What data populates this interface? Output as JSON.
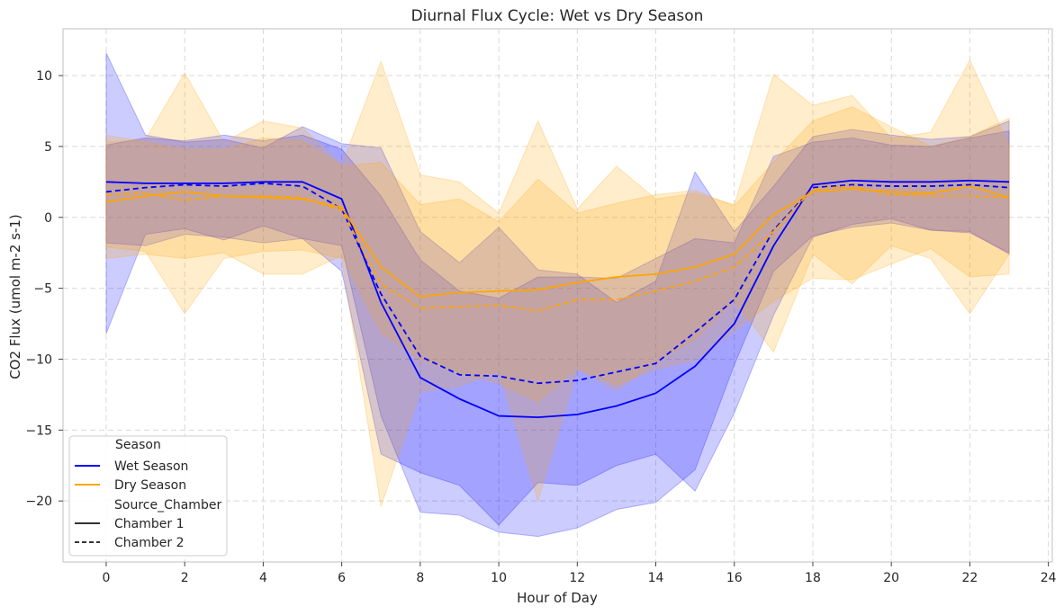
{
  "chart_data": {
    "type": "line",
    "title": "Diurnal Flux Cycle: Wet vs Dry Season",
    "xlabel": "Hour of Day",
    "ylabel": "CO2 Flux (umol m-2 s-1)",
    "xlim": [
      -1.1,
      24.1
    ],
    "ylim": [
      -24.3,
      13.3
    ],
    "x_ticks": [
      0,
      2,
      4,
      6,
      8,
      10,
      12,
      14,
      16,
      18,
      20,
      22,
      24
    ],
    "y_ticks": [
      -20,
      -15,
      -10,
      -5,
      0,
      5,
      10
    ],
    "grid": true,
    "legend_position": "lower-left",
    "legend": {
      "hue_title": "Season",
      "style_title": "Source_Chamber",
      "entries": [
        {
          "label": "Wet Season",
          "color": "#0000ff",
          "dash": "solid"
        },
        {
          "label": "Dry Season",
          "color": "#ffa500",
          "dash": "solid"
        },
        {
          "label": "Chamber 1",
          "color": "#333333",
          "dash": "solid"
        },
        {
          "label": "Chamber 2",
          "color": "#333333",
          "dash": "dashed"
        }
      ]
    },
    "x": [
      0,
      1,
      2,
      3,
      4,
      5,
      6,
      7,
      8,
      9,
      10,
      11,
      12,
      13,
      14,
      15,
      16,
      17,
      18,
      19,
      20,
      21,
      22,
      23
    ],
    "series": [
      {
        "name": "Wet Season",
        "chamber": "Chamber 1",
        "color": "#0000ff",
        "dash": "solid",
        "values": [
          2.5,
          2.4,
          2.4,
          2.4,
          2.5,
          2.5,
          1.3,
          -6.0,
          -11.3,
          -12.8,
          -14.0,
          -14.1,
          -13.9,
          -13.3,
          -12.4,
          -10.5,
          -7.5,
          -2.0,
          2.3,
          2.6,
          2.5,
          2.5,
          2.6,
          2.5
        ],
        "lower": [
          -8.2,
          -1.2,
          -0.8,
          -1.6,
          -0.6,
          -1.5,
          -3.8,
          -16.7,
          -18.0,
          -18.9,
          -21.7,
          -18.7,
          -18.9,
          -17.5,
          -16.7,
          -19.3,
          -13.8,
          -6.9,
          -1.4,
          -0.5,
          -0.1,
          -0.9,
          -1.0,
          -2.6
        ],
        "upper": [
          11.6,
          5.8,
          5.3,
          5.5,
          4.9,
          6.4,
          5.2,
          4.9,
          -1.0,
          -3.2,
          -0.7,
          -3.7,
          -4.0,
          -6.0,
          -4.5,
          3.2,
          -1.0,
          2.2,
          5.7,
          6.2,
          5.8,
          5.5,
          5.7,
          6.8
        ]
      },
      {
        "name": "Wet Season",
        "chamber": "Chamber 2",
        "color": "#0000ff",
        "dash": "dashed",
        "values": [
          1.8,
          2.1,
          2.3,
          2.2,
          2.4,
          2.2,
          0.6,
          -5.4,
          -9.8,
          -11.1,
          -11.2,
          -11.7,
          -11.5,
          -10.9,
          -10.3,
          -8.1,
          -5.8,
          -0.9,
          2.1,
          2.3,
          2.2,
          2.2,
          2.3,
          2.1
        ],
        "lower": [
          -1.8,
          -2.0,
          -1.2,
          -1.4,
          -1.8,
          -1.5,
          -2.0,
          -14.0,
          -20.8,
          -21.0,
          -22.2,
          -22.5,
          -21.9,
          -20.6,
          -20.1,
          -17.8,
          -10.4,
          -3.8,
          -1.3,
          -0.7,
          -0.4,
          -0.9,
          -1.1,
          -2.5
        ],
        "upper": [
          5.1,
          5.6,
          5.4,
          5.8,
          5.4,
          5.8,
          4.8,
          1.5,
          -3.0,
          -5.2,
          -5.7,
          -4.2,
          -4.2,
          -4.3,
          -2.9,
          -1.5,
          -1.8,
          4.3,
          5.3,
          5.6,
          5.1,
          5.0,
          5.6,
          6.1
        ]
      },
      {
        "name": "Dry Season",
        "chamber": "Chamber 1",
        "color": "#ffa500",
        "dash": "solid",
        "values": [
          1.1,
          1.5,
          1.8,
          1.5,
          1.4,
          1.3,
          0.7,
          -3.5,
          -5.6,
          -5.3,
          -5.2,
          -5.1,
          -4.6,
          -4.2,
          -4.0,
          -3.5,
          -2.6,
          0.2,
          1.8,
          2.0,
          1.8,
          1.7,
          2.2,
          1.4
        ],
        "lower": [
          -2.1,
          -2.4,
          -6.8,
          -2.9,
          -2.4,
          -2.3,
          -2.9,
          -20.4,
          -12.3,
          -11.9,
          -10.8,
          -20.0,
          -10.7,
          -12.2,
          -10.2,
          -8.6,
          -5.9,
          -9.5,
          -2.6,
          -4.7,
          -2.0,
          -2.9,
          -6.8,
          -2.6
        ],
        "upper": [
          5.3,
          5.5,
          10.2,
          5.3,
          6.8,
          6.3,
          3.7,
          11.0,
          3.0,
          2.5,
          0.3,
          6.8,
          0.6,
          3.6,
          1.3,
          1.7,
          0.9,
          10.1,
          7.9,
          8.6,
          5.6,
          6.0,
          11.1,
          5.1
        ]
      },
      {
        "name": "Dry Season",
        "chamber": "Chamber 2",
        "color": "#ffa500",
        "dash": "dashed",
        "values": [
          1.6,
          1.7,
          1.2,
          1.5,
          1.5,
          1.4,
          0.5,
          -4.7,
          -6.4,
          -6.3,
          -6.2,
          -6.6,
          -5.8,
          -5.8,
          -5.2,
          -4.5,
          -3.5,
          -1.0,
          2.0,
          2.2,
          1.6,
          1.5,
          1.5,
          1.4
        ],
        "lower": [
          -2.9,
          -2.6,
          -2.9,
          -2.5,
          -4.0,
          -4.0,
          -2.7,
          -8.1,
          -10.0,
          -11.0,
          -11.7,
          -13.0,
          -10.6,
          -11.8,
          -10.7,
          -10.1,
          -8.0,
          -5.9,
          -4.3,
          -4.4,
          -3.3,
          -2.2,
          -4.2,
          -4.0
        ],
        "upper": [
          5.8,
          5.3,
          4.8,
          4.8,
          5.6,
          5.4,
          3.6,
          3.9,
          0.9,
          1.3,
          -0.3,
          2.7,
          0.3,
          1.0,
          1.6,
          1.9,
          0.8,
          3.9,
          6.8,
          7.8,
          6.4,
          5.0,
          5.7,
          7.0
        ]
      }
    ]
  }
}
